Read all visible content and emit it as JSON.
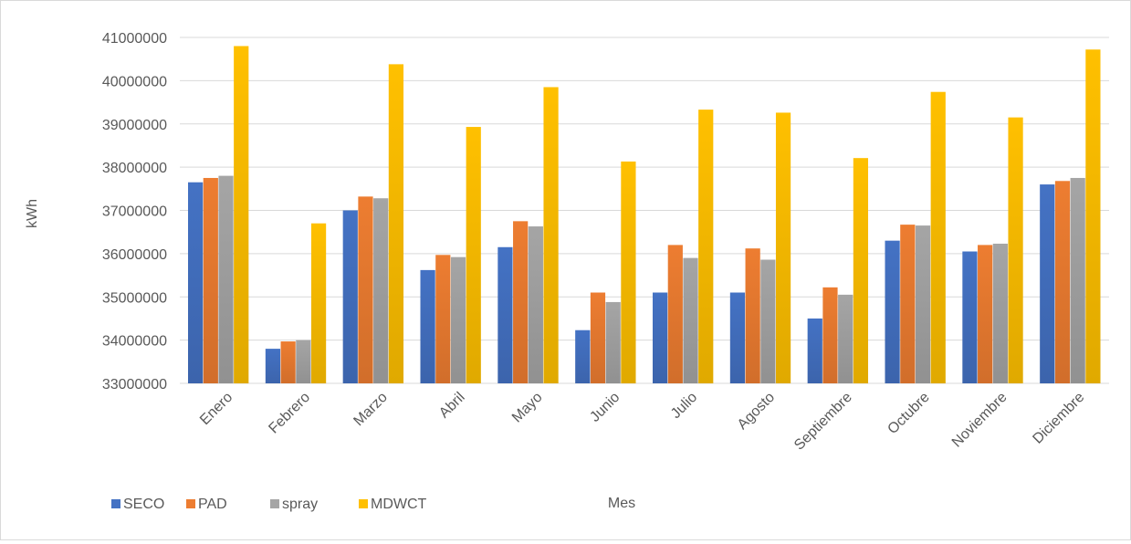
{
  "chart_data": {
    "type": "bar",
    "title": "",
    "xlabel": "Mes",
    "ylabel": "kWh",
    "ylim": [
      33000000,
      41000000
    ],
    "yticks": [
      33000000,
      34000000,
      35000000,
      36000000,
      37000000,
      38000000,
      39000000,
      40000000,
      41000000
    ],
    "grid": true,
    "legend_position": "bottom-left",
    "categories": [
      "Enero",
      "Febrero",
      "Marzo",
      "Abril",
      "Mayo",
      "Junio",
      "Julio",
      "Agosto",
      "Septiembre",
      "Octubre",
      "Noviembre",
      "Diciembre"
    ],
    "series": [
      {
        "name": "SECO",
        "color": "#4472c4",
        "values": [
          37650000,
          33800000,
          37000000,
          35620000,
          36150000,
          34230000,
          35100000,
          35100000,
          34500000,
          36300000,
          36050000,
          37600000
        ]
      },
      {
        "name": "PAD",
        "color": "#ed7d31",
        "values": [
          37750000,
          33970000,
          37320000,
          35970000,
          36750000,
          35100000,
          36200000,
          36120000,
          35220000,
          36670000,
          36200000,
          37680000
        ]
      },
      {
        "name": "spray",
        "color": "#a5a5a5",
        "values": [
          37800000,
          34000000,
          37280000,
          35920000,
          36630000,
          34880000,
          35900000,
          35860000,
          35050000,
          36650000,
          36230000,
          37750000
        ]
      },
      {
        "name": "MDWCT",
        "color": "#ffc000",
        "values": [
          40800000,
          36700000,
          40380000,
          38930000,
          39850000,
          38130000,
          39330000,
          39260000,
          38210000,
          39740000,
          39150000,
          40720000
        ]
      }
    ]
  }
}
